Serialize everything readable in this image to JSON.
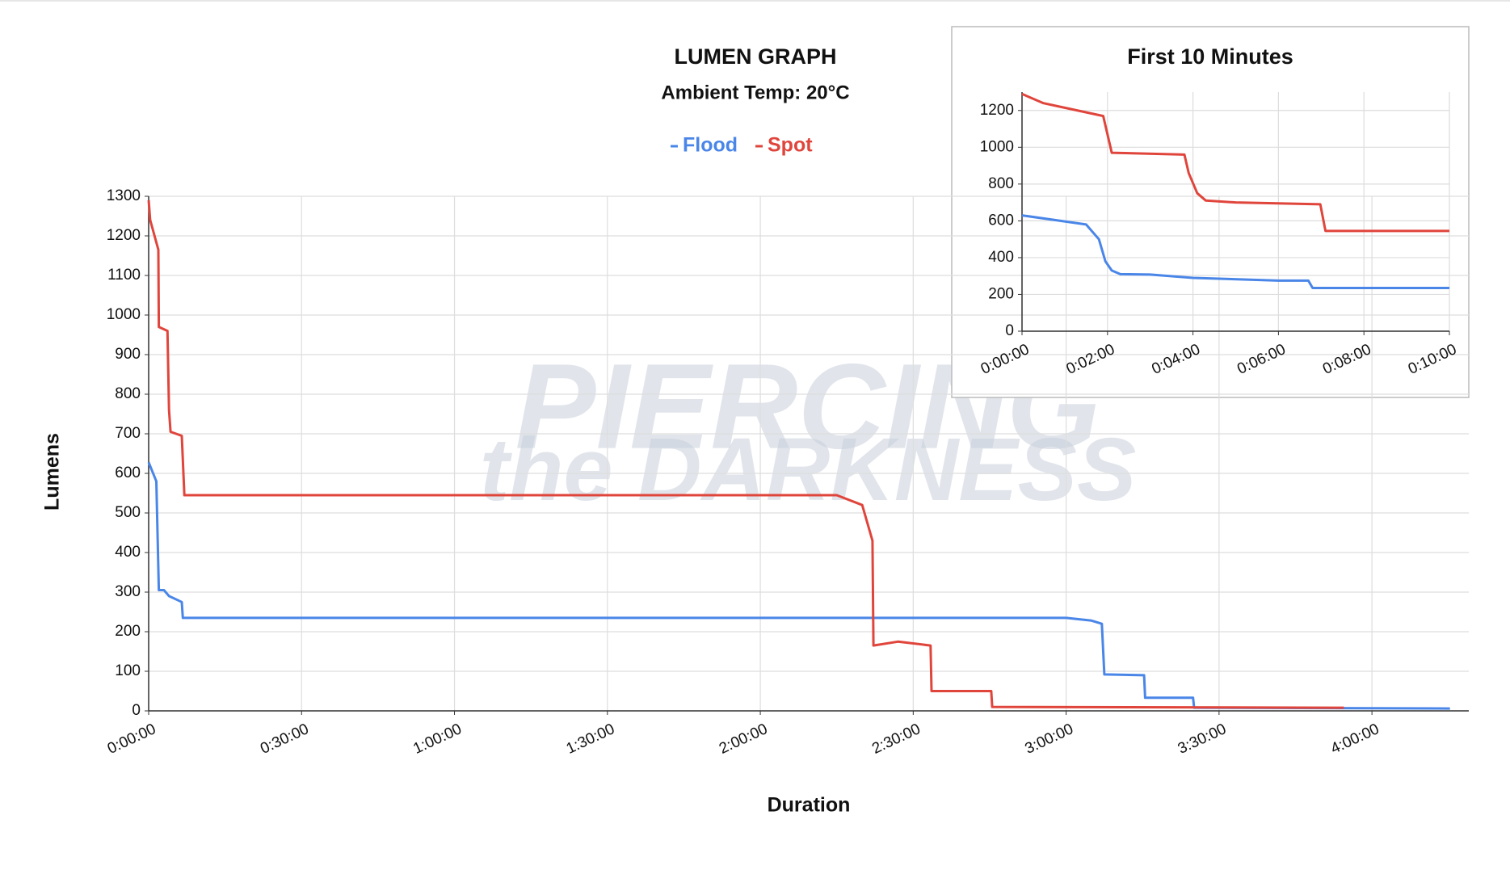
{
  "chart_data": [
    {
      "type": "line",
      "title": "LUMEN GRAPH",
      "subtitle": "Ambient Temp: 20°C",
      "x_label": "Duration",
      "y_label": "Lumens",
      "watermark": [
        "PIERCING",
        "the DARKNESS"
      ],
      "grid": true,
      "legend": "top",
      "xlim": [
        0,
        259
      ],
      "ylim": [
        0,
        1300
      ],
      "xticks": [
        {
          "value": 0,
          "label": "0:00:00"
        },
        {
          "value": 30,
          "label": "0:30:00"
        },
        {
          "value": 60,
          "label": "1:00:00"
        },
        {
          "value": 90,
          "label": "1:30:00"
        },
        {
          "value": 120,
          "label": "2:00:00"
        },
        {
          "value": 150,
          "label": "2:30:00"
        },
        {
          "value": 180,
          "label": "3:00:00"
        },
        {
          "value": 210,
          "label": "3:30:00"
        },
        {
          "value": 240,
          "label": "4:00:00"
        }
      ],
      "yticks": [
        0,
        100,
        200,
        300,
        400,
        500,
        600,
        700,
        800,
        900,
        1000,
        1100,
        1200,
        1300
      ],
      "series": [
        {
          "name": "Flood",
          "color": "#4a86e8",
          "x": [
            0,
            1.5,
            2,
            3,
            4,
            6,
            6.5,
            6.7,
            10,
            180,
            185,
            187,
            187.5,
            195.3,
            195.5,
            204.9,
            205.1,
            255.3
          ],
          "values": [
            628,
            580,
            305,
            305,
            290,
            278,
            275,
            235,
            235,
            235,
            228,
            220,
            92,
            90,
            33,
            33,
            8,
            6
          ]
        },
        {
          "name": "Spot",
          "color": "#e0453c",
          "x": [
            0,
            0.3,
            1.9,
            2.0,
            3.7,
            4.0,
            4.3,
            6.5,
            7.0,
            100,
            135,
            140,
            142,
            142.2,
            147,
            153.4,
            153.6,
            165.3,
            165.5,
            234.5
          ],
          "values": [
            1290,
            1240,
            1165,
            970,
            960,
            760,
            705,
            695,
            545,
            545,
            545,
            520,
            430,
            165,
            175,
            165,
            50,
            50,
            10,
            8
          ]
        }
      ]
    },
    {
      "type": "line",
      "title": "First 10 Minutes",
      "grid": true,
      "xlim": [
        0,
        10
      ],
      "ylim": [
        0,
        1300
      ],
      "xticks": [
        {
          "value": 0,
          "label": "0:00:00"
        },
        {
          "value": 2,
          "label": "0:02:00"
        },
        {
          "value": 4,
          "label": "0:04:00"
        },
        {
          "value": 6,
          "label": "0:06:00"
        },
        {
          "value": 8,
          "label": "0:08:00"
        },
        {
          "value": 10,
          "label": "0:10:00"
        }
      ],
      "yticks": [
        0,
        200,
        400,
        600,
        800,
        1000,
        1200
      ],
      "series": [
        {
          "name": "Flood",
          "color": "#4a86e8",
          "x": [
            0,
            1.5,
            1.8,
            1.95,
            2.1,
            2.3,
            3,
            4,
            6,
            6.7,
            6.8,
            10
          ],
          "values": [
            630,
            580,
            500,
            380,
            330,
            310,
            308,
            290,
            275,
            275,
            235,
            235
          ]
        },
        {
          "name": "Spot",
          "color": "#e0453c",
          "x": [
            0,
            0.5,
            1,
            1.9,
            2.1,
            3.8,
            3.9,
            4.1,
            4.3,
            5,
            6.98,
            7.1,
            10
          ],
          "values": [
            1290,
            1240,
            1215,
            1170,
            970,
            960,
            860,
            750,
            710,
            700,
            690,
            545,
            545
          ]
        }
      ]
    }
  ]
}
